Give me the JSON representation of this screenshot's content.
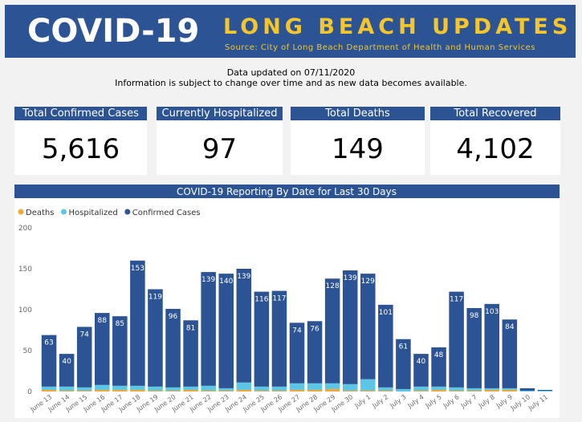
{
  "header": {
    "logo": "COVID-19",
    "title": "LONG BEACH UPDATES",
    "source": "Source: City of Long Beach Department of Health and Human Services"
  },
  "notice": {
    "updated": "Data updated on 07/11/2020",
    "disclaimer": "Information is subject to change over time and as new data becomes available."
  },
  "kpis": [
    {
      "label": "Total Confirmed Cases",
      "value": "5,616"
    },
    {
      "label": "Currently Hospitalized",
      "value": "97"
    },
    {
      "label": "Total Deaths",
      "value": "149"
    },
    {
      "label": "Total Recovered",
      "value": "4,102"
    }
  ],
  "chart_data": {
    "type": "stacked_bar",
    "title": "COVID-19 Reporting By Date for Last 30 Days",
    "categories": [
      "June 13",
      "June 14",
      "June 15",
      "June 16",
      "June 17",
      "June 18",
      "June 19",
      "June 20",
      "June 21",
      "June 22",
      "June 23",
      "June 24",
      "June 25",
      "June 26",
      "June 27",
      "June 28",
      "June 29",
      "June 30",
      "July 1",
      "July 2",
      "July 3",
      "July 4",
      "July 5",
      "July 6",
      "July 7",
      "July 8",
      "July 9",
      "July 10",
      "July 11"
    ],
    "series": [
      {
        "name": "Deaths",
        "color": "#f2a93b",
        "values": [
          2,
          1,
          1,
          2,
          2,
          2,
          1,
          1,
          2,
          1,
          1,
          2,
          1,
          1,
          2,
          2,
          3,
          1,
          1,
          1,
          0,
          1,
          2,
          1,
          1,
          2,
          2,
          0,
          0
        ]
      },
      {
        "name": "Hospitalized",
        "color": "#5cc6e4",
        "values": [
          4,
          5,
          4,
          6,
          5,
          5,
          5,
          4,
          4,
          6,
          3,
          9,
          5,
          5,
          8,
          8,
          7,
          8,
          14,
          4,
          3,
          5,
          4,
          4,
          3,
          2,
          2,
          1,
          1
        ]
      },
      {
        "name": "Confirmed Cases",
        "color": "#2c5494",
        "values": [
          63,
          40,
          74,
          88,
          85,
          153,
          119,
          96,
          81,
          139,
          140,
          139,
          116,
          117,
          74,
          76,
          128,
          139,
          129,
          101,
          61,
          40,
          48,
          117,
          98,
          103,
          84,
          3,
          1
        ]
      }
    ],
    "ylim": [
      0,
      200
    ],
    "yticks": [
      0,
      50,
      100,
      150,
      200
    ],
    "grid": false,
    "legend": "top-left"
  }
}
